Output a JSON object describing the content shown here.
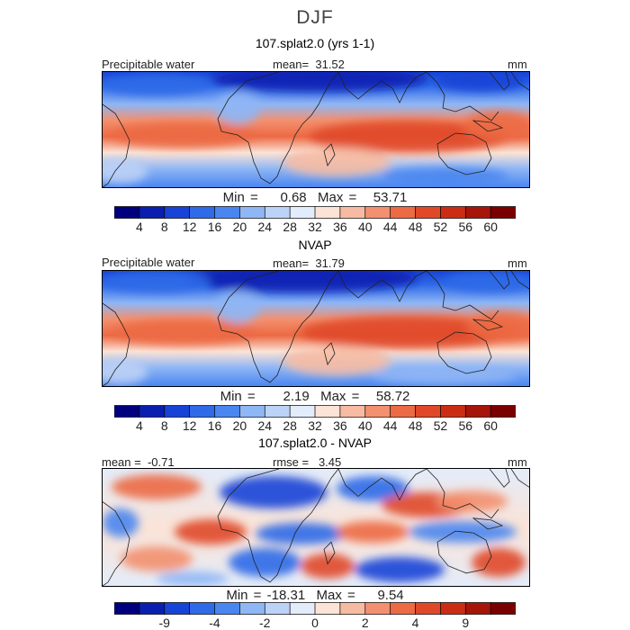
{
  "figure": {
    "title": "DJF",
    "colors": {
      "standard": [
        "#00007f",
        "#0a1fb0",
        "#1743d6",
        "#2f6ae8",
        "#4a86f0",
        "#8fb6f5",
        "#bcd2f6",
        "#e3ecfa",
        "#fbe3d6",
        "#f7bba3",
        "#f3906f",
        "#ec6a44",
        "#e04927",
        "#cb2d14",
        "#a6140a",
        "#7a0000"
      ],
      "difference": [
        "#00007f",
        "#0a1fb0",
        "#1743d6",
        "#2f6ae8",
        "#4a86f0",
        "#8fb6f5",
        "#bcd2f6",
        "#e3ecfa",
        "#fbe3d6",
        "#f7bba3",
        "#f3906f",
        "#ec6a44",
        "#e04927",
        "#cb2d14",
        "#a6140a",
        "#7a0000"
      ]
    }
  },
  "chart_data": [
    {
      "type": "heatmap",
      "title": "107.splat2.0 (yrs 1-1)",
      "variable": "Precipitable water",
      "mean_label": "mean=",
      "mean": "31.52",
      "units": "mm",
      "min_label": "Min =",
      "min": "0.68",
      "max_label": "Max =",
      "max": "53.71",
      "colorbar_ticks": [
        "4",
        "8",
        "12",
        "16",
        "20",
        "24",
        "28",
        "32",
        "36",
        "40",
        "44",
        "48",
        "52",
        "56",
        "60"
      ]
    },
    {
      "type": "heatmap",
      "title": "NVAP",
      "variable": "Precipitable water",
      "mean_label": "mean=",
      "mean": "31.79",
      "units": "mm",
      "min_label": "Min =",
      "min": "2.19",
      "max_label": "Max =",
      "max": "58.72",
      "colorbar_ticks": [
        "4",
        "8",
        "12",
        "16",
        "20",
        "24",
        "28",
        "32",
        "36",
        "40",
        "44",
        "48",
        "52",
        "56",
        "60"
      ]
    },
    {
      "type": "heatmap",
      "title": "107.splat2.0 - NVAP",
      "mean_label": "mean =",
      "mean": "-0.71",
      "rmse_label": "rmse =",
      "rmse": "3.45",
      "units": "mm",
      "min_label": "Min =",
      "min": "-18.31",
      "max_label": "Max =",
      "max": "9.54",
      "colorbar_ticks": [
        "-9",
        "-4",
        "-2",
        "0",
        "2",
        "4",
        "9"
      ]
    }
  ]
}
